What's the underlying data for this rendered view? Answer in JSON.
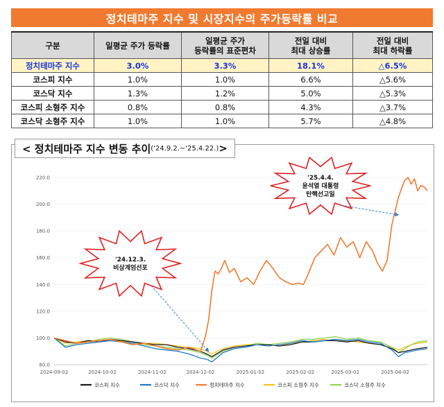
{
  "title": "정치테마주 지수 및 시장지수의 주가등락률 비교",
  "table": {
    "headers": [
      "구분",
      "일평균 주가 등락률",
      "일평균 주가\n등락률의 표준편차",
      "전일 대비\n최대 상승률",
      "전일 대비\n최대 하락률"
    ],
    "rows": [
      {
        "label": "정치테마주 지수",
        "avg": "3.0%",
        "std": "3.3%",
        "max_up": "18.1%",
        "max_down": "△6.5%"
      },
      {
        "label": "코스피 지수",
        "avg": "1.0%",
        "std": "1.0%",
        "max_up": "6.6%",
        "max_down": "△5.6%"
      },
      {
        "label": "코스닥 지수",
        "avg": "1.3%",
        "std": "1.2%",
        "max_up": "5.0%",
        "max_down": "△5.3%"
      },
      {
        "label": "코스피 소형주 지수",
        "avg": "0.8%",
        "std": "0.8%",
        "max_up": "4.3%",
        "max_down": "△3.7%"
      },
      {
        "label": "코스닥 소형주 지수",
        "avg": "1.0%",
        "std": "1.0%",
        "max_up": "5.7%",
        "max_down": "△4.8%"
      }
    ]
  },
  "chart_heading": "< 정치테마주 지수 변동 추이",
  "chart_heading_range": "('24.9.2.~'25.4.22.)",
  "chart_heading_end": ">",
  "chart_data": {
    "type": "line",
    "title": "정치테마주 지수 변동 추이",
    "ylim": [
      80,
      220
    ],
    "yticks": [
      "220.0",
      "200.0",
      "180.0",
      "160.0",
      "140.0",
      "120.0",
      "100.0",
      "80.0"
    ],
    "ytick_values": [
      220,
      200,
      180,
      160,
      140,
      120,
      100,
      80
    ],
    "xticks": [
      "2024-09-02",
      "2024-10-02",
      "2024-11-02",
      "2024-12-02",
      "2025-01-02",
      "2025-02-02",
      "2025-03-02",
      "2025-04-02"
    ],
    "x_days_total": 232,
    "xtick_days": [
      0,
      30,
      61,
      91,
      122,
      153,
      181,
      212
    ],
    "series": [
      {
        "name": "코스피 지수",
        "color": "#1a1a1a",
        "x": [
          0,
          7,
          14,
          21,
          28,
          35,
          42,
          49,
          56,
          63,
          70,
          77,
          84,
          91,
          95,
          98,
          105,
          112,
          119,
          126,
          133,
          140,
          147,
          154,
          161,
          168,
          175,
          182,
          189,
          196,
          203,
          210,
          214,
          218,
          222,
          226,
          232
        ],
        "y": [
          100,
          97,
          96,
          98,
          97,
          99,
          98,
          97,
          96,
          95,
          95,
          93,
          92,
          90,
          88,
          86,
          91,
          93,
          94,
          95,
          95,
          94,
          95,
          97,
          97,
          98,
          98,
          97,
          98,
          96,
          95,
          92,
          89,
          90,
          91,
          92,
          93
        ]
      },
      {
        "name": "코스닥 지수",
        "color": "#1f77c8",
        "x": [
          0,
          7,
          14,
          21,
          28,
          35,
          42,
          49,
          56,
          63,
          70,
          77,
          84,
          91,
          95,
          98,
          105,
          112,
          119,
          126,
          133,
          140,
          147,
          154,
          161,
          168,
          175,
          182,
          189,
          196,
          203,
          210,
          214,
          218,
          222,
          226,
          232
        ],
        "y": [
          100,
          93,
          95,
          96,
          97,
          98,
          97,
          96,
          94,
          92,
          91,
          90,
          88,
          85,
          84,
          82,
          89,
          92,
          93,
          95,
          94,
          95,
          96,
          98,
          97,
          98,
          99,
          98,
          99,
          97,
          96,
          91,
          86,
          89,
          90,
          91,
          92
        ]
      },
      {
        "name": "정치테마주 지수",
        "color": "#f07a30",
        "x": [
          0,
          7,
          14,
          21,
          28,
          35,
          42,
          49,
          56,
          63,
          70,
          77,
          84,
          91,
          94,
          96,
          98,
          100,
          102,
          104,
          106,
          109,
          112,
          116,
          120,
          124,
          128,
          132,
          136,
          140,
          144,
          148,
          152,
          155,
          158,
          162,
          166,
          170,
          174,
          178,
          182,
          186,
          190,
          194,
          198,
          201,
          204,
          207,
          210,
          212,
          214,
          216,
          218,
          220,
          222,
          224,
          226,
          228,
          230,
          232
        ],
        "y": [
          100,
          98,
          96,
          97,
          98,
          99,
          97,
          95,
          96,
          94,
          92,
          91,
          93,
          90,
          101,
          113,
          135,
          150,
          148,
          152,
          158,
          149,
          152,
          142,
          145,
          140,
          150,
          158,
          152,
          145,
          142,
          140,
          141,
          140,
          148,
          160,
          165,
          170,
          162,
          175,
          168,
          172,
          160,
          172,
          165,
          156,
          150,
          158,
          185,
          195,
          205,
          212,
          218,
          220,
          215,
          219,
          210,
          214,
          213,
          210
        ]
      },
      {
        "name": "코스피 소형주 지수",
        "color": "#f2c21b",
        "x": [
          0,
          7,
          14,
          21,
          28,
          35,
          42,
          49,
          56,
          63,
          70,
          77,
          84,
          91,
          95,
          98,
          105,
          112,
          119,
          126,
          133,
          140,
          147,
          154,
          161,
          168,
          175,
          182,
          189,
          196,
          203,
          210,
          214,
          218,
          222,
          226,
          232
        ],
        "y": [
          100,
          96,
          97,
          98,
          98,
          99,
          98,
          97,
          96,
          96,
          95,
          94,
          93,
          92,
          90,
          88,
          92,
          94,
          95,
          95,
          95,
          94,
          96,
          97,
          98,
          99,
          98,
          98,
          97,
          96,
          95,
          93,
          91,
          93,
          95,
          96,
          97
        ]
      },
      {
        "name": "코스닥 소형주 지수",
        "color": "#8fd14f",
        "x": [
          0,
          7,
          14,
          21,
          28,
          35,
          42,
          49,
          56,
          63,
          70,
          77,
          84,
          91,
          95,
          98,
          105,
          112,
          119,
          126,
          133,
          140,
          147,
          154,
          161,
          168,
          175,
          182,
          189,
          196,
          203,
          210,
          214,
          218,
          222,
          226,
          232
        ],
        "y": [
          100,
          94,
          96,
          97,
          99,
          100,
          99,
          97,
          95,
          94,
          93,
          92,
          91,
          89,
          87,
          85,
          90,
          93,
          94,
          96,
          95,
          96,
          97,
          99,
          99,
          100,
          101,
          99,
          100,
          98,
          97,
          93,
          89,
          92,
          95,
          97,
          98
        ]
      }
    ],
    "annotations": [
      {
        "lines": [
          "'24.12.3.",
          "비상계엄선포"
        ],
        "target_day": 96,
        "target_value": 90
      },
      {
        "lines": [
          "'25.4.4.",
          "윤석열 대통령",
          "탄핵선고일"
        ],
        "target_day": 214,
        "target_value": 192
      }
    ]
  }
}
